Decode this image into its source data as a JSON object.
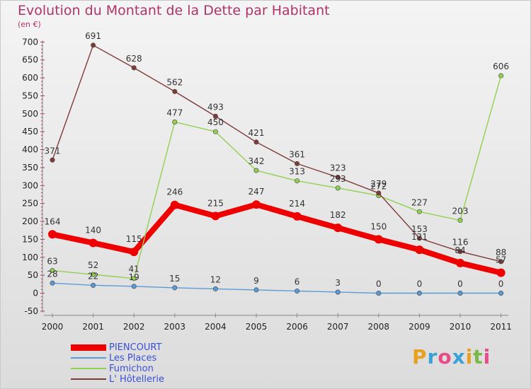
{
  "title": "Evolution du Montant de la Dette par Habitant",
  "subtitle": "(en €)",
  "brand": {
    "letters": [
      "P",
      "r",
      "o",
      "x",
      "i",
      "t",
      "i"
    ],
    "colors": [
      "#e8a020",
      "#3aa0d8",
      "#e84a8a",
      "#3aa0d8",
      "#e8a020",
      "#7bb84a",
      "#e84a8a"
    ]
  },
  "chart_data": {
    "type": "line",
    "title": "Evolution du Montant de la Dette par Habitant",
    "ylabel": "(en €)",
    "xlabel": "",
    "categories": [
      "2000",
      "2001",
      "2002",
      "2003",
      "2004",
      "2005",
      "2006",
      "2007",
      "2008",
      "2009",
      "2010",
      "2011"
    ],
    "yticks": [
      "700",
      "650",
      "600",
      "550",
      "500",
      "450",
      "400",
      "350",
      "300",
      "250",
      "200",
      "150",
      "100",
      "50",
      "0",
      "-50"
    ],
    "ylim": [
      -50,
      700
    ],
    "grid": false,
    "legend_position": "bottom-left",
    "series": [
      {
        "name": "PIENCOURT",
        "color": "#ee0000",
        "values": [
          164,
          140,
          115,
          246,
          215,
          247,
          214,
          182,
          150,
          121,
          84,
          57
        ]
      },
      {
        "name": "Les Places",
        "color": "#5b9bd5",
        "values": [
          28,
          22,
          19,
          15,
          12,
          9,
          6,
          3,
          0,
          0,
          0,
          0
        ]
      },
      {
        "name": "Fumichon",
        "color": "#92d050",
        "values": [
          63,
          52,
          41,
          477,
          450,
          342,
          313,
          293,
          272,
          227,
          203,
          606
        ]
      },
      {
        "name": "L' Hôtellerie",
        "color": "#7f3a3a",
        "values": [
          371,
          691,
          628,
          562,
          493,
          421,
          361,
          323,
          279,
          153,
          116,
          88
        ]
      }
    ]
  }
}
